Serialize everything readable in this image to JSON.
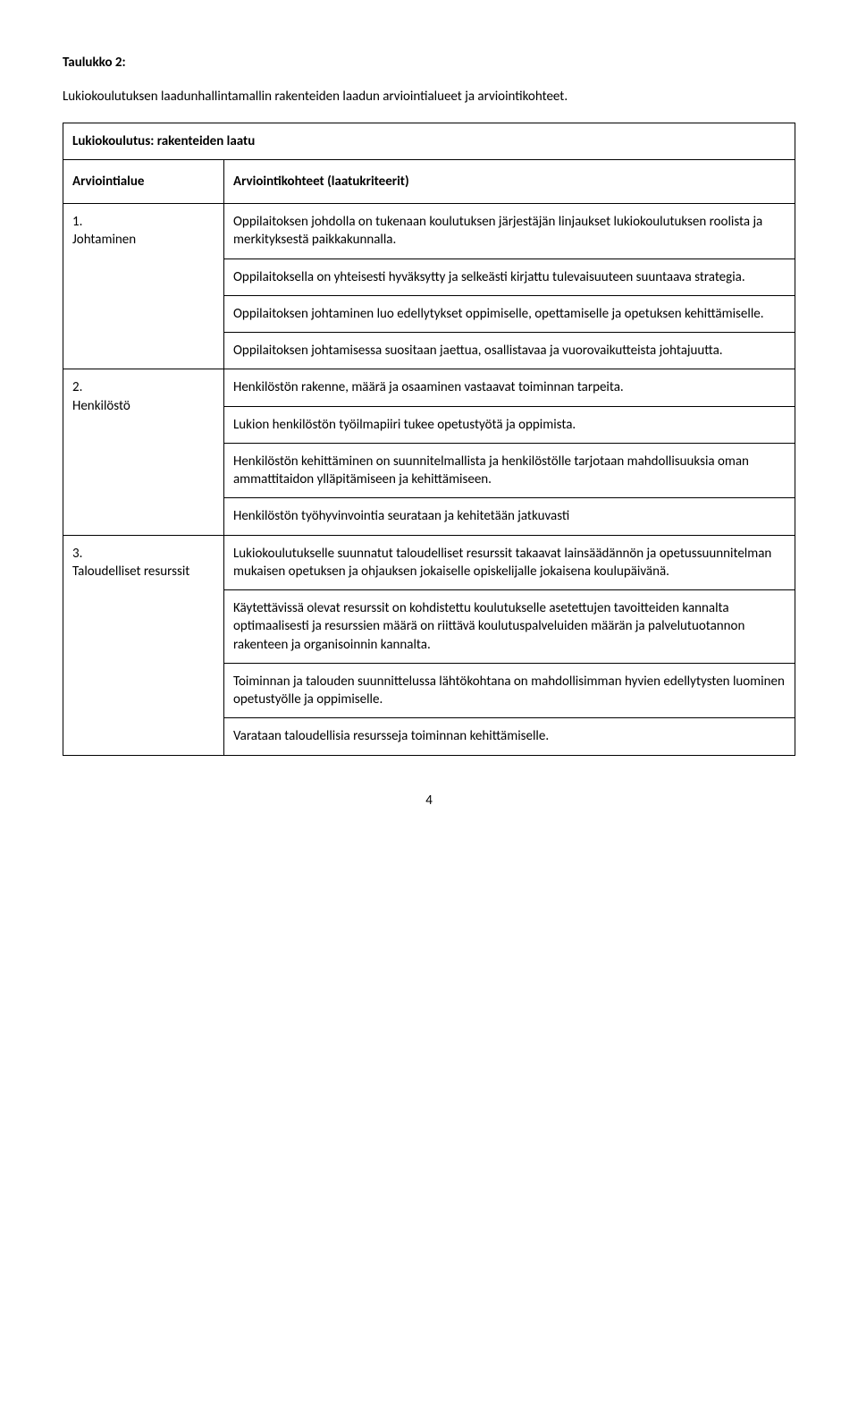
{
  "table_label": "Taulukko 2:",
  "table_caption": "Lukiokoulutuksen laadunhallintamallin rakenteiden laadun arviointialueet ja arviointikohteet.",
  "section_title": "Lukiokoulutus: rakenteiden laatu",
  "header_left": "Arviointialue",
  "header_right": "Arviointikohteet (laatukriteerit)",
  "rows": [
    {
      "left": "1.\nJohtaminen",
      "cells": [
        "Oppilaitoksen johdolla on tukenaan koulutuksen järjestäjän linjaukset lukiokoulutuksen roolista ja merkityksestä paikkakunnalla.",
        "Oppilaitoksella on yhteisesti hyväksytty ja selkeästi kirjattu tulevaisuuteen suuntaava strategia.",
        "Oppilaitoksen johtaminen luo edellytykset oppimiselle, opettamiselle ja opetuksen kehittämiselle.",
        "Oppilaitoksen johtamisessa suositaan jaettua, osallistavaa ja vuorovaikutteista johtajuutta."
      ]
    },
    {
      "left": "2.\nHenkilöstö",
      "cells": [
        "Henkilöstön rakenne, määrä ja osaaminen vastaavat toiminnan tarpeita.",
        "Lukion henkilöstön työilmapiiri tukee opetustyötä ja oppimista.",
        "Henkilöstön kehittäminen on suunnitelmallista ja henkilöstölle tarjotaan mahdollisuuksia oman ammattitaidon ylläpitämiseen ja kehittämiseen.",
        "Henkilöstön työhyvinvointia seurataan ja kehitetään jatkuvasti"
      ]
    },
    {
      "left": "3.\nTaloudelliset resurssit",
      "cells": [
        "Lukiokoulutukselle suunnatut taloudelliset resurssit takaavat lainsäädännön ja opetussuunnitelman mukaisen opetuksen ja ohjauksen jokaiselle opiskelijalle jokaisena koulupäivänä.",
        "Käytettävissä olevat resurssit on kohdistettu koulutukselle asetettujen tavoitteiden kannalta optimaalisesti ja resurssien määrä on riittävä koulutuspalveluiden määrän ja palvelutuotannon rakenteen ja organisoinnin kannalta.",
        "Toiminnan ja talouden suunnittelussa lähtökohtana on mahdollisimman hyvien edellytysten luominen opetustyölle ja oppimiselle.",
        "Varataan taloudellisia resursseja toiminnan kehittämiselle."
      ]
    }
  ],
  "page_number": "4"
}
